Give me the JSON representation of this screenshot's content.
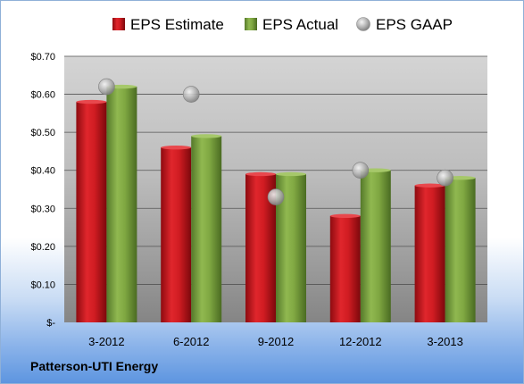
{
  "company": "Patterson-UTI Energy",
  "colors": {
    "estimate": "#c8141c",
    "actual": "#7aa23a",
    "gaap": "#b8b8b8"
  },
  "chart_data": {
    "type": "bar",
    "categories": [
      "3-2012",
      "6-2012",
      "9-2012",
      "12-2012",
      "3-2013"
    ],
    "series": [
      {
        "name": "EPS Estimate",
        "kind": "bar",
        "values": [
          0.58,
          0.46,
          0.39,
          0.28,
          0.36
        ]
      },
      {
        "name": "EPS Actual",
        "kind": "bar",
        "values": [
          0.62,
          0.49,
          0.39,
          0.4,
          0.38
        ]
      },
      {
        "name": "EPS GAAP",
        "kind": "marker",
        "values": [
          0.62,
          0.6,
          0.33,
          0.4,
          0.38
        ]
      }
    ],
    "y_ticks": [
      0,
      0.1,
      0.2,
      0.3,
      0.4,
      0.5,
      0.6,
      0.7
    ],
    "y_tick_labels": [
      "$-",
      "$0.10",
      "$0.20",
      "$0.30",
      "$0.40",
      "$0.50",
      "$0.60",
      "$0.70"
    ],
    "ylim": [
      0,
      0.7
    ],
    "grid": true,
    "legend_position": "top"
  }
}
